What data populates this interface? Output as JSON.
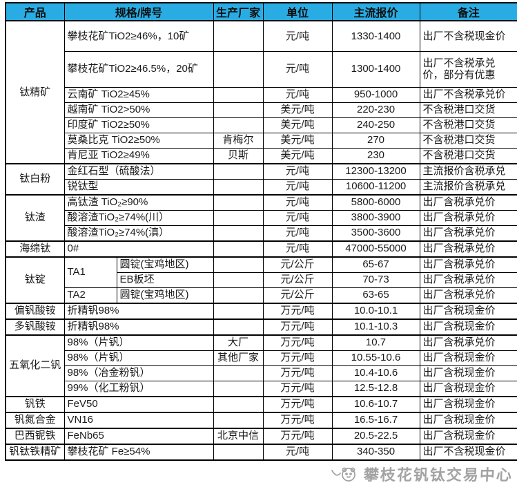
{
  "header": {
    "columns": [
      "产品",
      "规格/牌号",
      "生产厂家",
      "单位",
      "主流报价",
      "备注"
    ]
  },
  "rows": [
    {
      "product": "钛精矿",
      "product_rowspan": 7,
      "group": true,
      "height": 44,
      "spec": "攀枝花矿TiO2≥46%，10矿",
      "maker": "",
      "unit": "元/吨",
      "price": "1330-1400",
      "note": "出厂不含税现金价"
    },
    {
      "height": 52,
      "spec": "攀枝花矿TiO2≥46.5%，20矿",
      "maker": "",
      "unit": "元/吨",
      "price": "1300-1400",
      "note": "出厂不含税承兑价，部分有优惠"
    },
    {
      "spec": "云南矿 TiO2≥45%",
      "maker": "",
      "unit": "元/吨",
      "price": "950-1000",
      "note": "出厂不含税承兑价"
    },
    {
      "spec": "越南矿 TiO2>50%",
      "maker": "",
      "unit": "美元/吨",
      "price": "220-230",
      "note": "不含税港口交货"
    },
    {
      "spec": "印度矿 TiO2≥50%",
      "maker": "",
      "unit": "美元/吨",
      "price": "240-250",
      "note": "不含税港口交货"
    },
    {
      "spec": "莫桑比克 TiO2≥50%",
      "maker": "肯梅尔",
      "unit": "美元/吨",
      "price": "270",
      "note": "不含税港口交货"
    },
    {
      "spec": "肯尼亚 TiO2≥49%",
      "maker": "贝斯",
      "unit": "美元/吨",
      "price": "230",
      "note": "不含税港口交货"
    },
    {
      "product": "钛白粉",
      "product_rowspan": 2,
      "group": true,
      "spec": "金红石型（硫酸法）",
      "maker": "",
      "unit": "元/吨",
      "price": "12300-13200",
      "note": "主流报价含税承兑"
    },
    {
      "spec": "锐钛型",
      "maker": "",
      "unit": "元/吨",
      "price": "10600-11200",
      "note": "主流报价含税承兑"
    },
    {
      "product": "钛渣",
      "product_rowspan": 3,
      "group": true,
      "spec": "高钛渣 TiO₂≥90%",
      "maker": "",
      "unit": "元/吨",
      "price": "5800-6000",
      "note": "出厂含税承兑价"
    },
    {
      "spec": "酸溶渣TiO₂≥74%(川）",
      "maker": "",
      "unit": "元/吨",
      "price": "3800-3900",
      "note": "出厂含税承兑价"
    },
    {
      "spec": "酸溶渣TiO₂≥74%(滇）",
      "maker": "",
      "unit": "元/吨",
      "price": "3500-3600",
      "note": "出厂含税承兑价"
    },
    {
      "product": "海绵钛",
      "product_rowspan": 1,
      "group": true,
      "spec": "0#",
      "maker": "",
      "unit": "元/吨",
      "price": "47000-55000",
      "note": "出厂含税承兑价"
    },
    {
      "product": "钛锭",
      "product_rowspan": 3,
      "group": true,
      "split": true,
      "spec": "TA1",
      "spec_rowspan": 2,
      "spec2": "圆锭(宝鸡地区)",
      "maker": "",
      "unit": "元/公斤",
      "price": "65-67",
      "note": "出厂含税承兑价"
    },
    {
      "split": true,
      "spec2": "EB板坯",
      "maker": "",
      "unit": "元/公斤",
      "price": "70-73",
      "note": "出厂含税承兑价"
    },
    {
      "split": true,
      "spec": "TA2",
      "spec2": "圆锭(宝鸡地区)",
      "maker": "",
      "unit": "元/公斤",
      "price": "63-65",
      "note": "出厂含税承兑价"
    },
    {
      "product": "偏钒酸铵",
      "product_rowspan": 1,
      "group": true,
      "spec": "折精钒98%",
      "maker": "",
      "unit": "万元/吨",
      "price": "10.0-10.1",
      "note": "出厂含税现金价"
    },
    {
      "product": "多钒酸铵",
      "product_rowspan": 1,
      "group": true,
      "spec": "折精钒98%",
      "maker": "",
      "unit": "万元/吨",
      "price": "10.1-10.3",
      "note": "出厂含税现金价"
    },
    {
      "product": "五氧化二钒",
      "product_rowspan": 4,
      "group": true,
      "spec": "98%（片钒）",
      "maker": "大厂",
      "unit": "万元/吨",
      "price": "10.7",
      "note": "出厂含税承兑价"
    },
    {
      "spec": "98%（片钒）",
      "maker": "其他厂家",
      "unit": "万元/吨",
      "price": "10.55-10.6",
      "note": "出厂含税现金价"
    },
    {
      "spec": "98%（冶金粉钒）",
      "maker": "",
      "unit": "万元/吨",
      "price": "10.4-10.6",
      "note": "出厂含税现金价"
    },
    {
      "spec": "99%（化工粉钒）",
      "maker": "",
      "unit": "万元/吨",
      "price": "12.5-12.8",
      "note": "出厂含税现金价"
    },
    {
      "product": "钒铁",
      "product_rowspan": 1,
      "group": true,
      "spec": "FeV50",
      "maker": "",
      "unit": "万元/吨",
      "price": "10.6-10.7",
      "note": "出厂含税现金价"
    },
    {
      "product": "钒氮合金",
      "product_rowspan": 1,
      "group": true,
      "spec": "VN16",
      "maker": "",
      "unit": "万元/吨",
      "price": "16.5-16.7",
      "note": "出厂含税现金价"
    },
    {
      "product": "巴西铌铁",
      "product_rowspan": 1,
      "group": true,
      "spec": "FeNb65",
      "maker": "北京中信",
      "unit": "万元/吨",
      "price": "20.5-22.5",
      "note": "出厂含税现金价"
    },
    {
      "product": "钒钛铁精矿",
      "product_rowspan": 1,
      "group": true,
      "spec": "攀枝花矿 Fe≥54%",
      "maker": "",
      "unit": "元/吨",
      "price": "340-350",
      "note": "出厂不含税现金价"
    }
  ],
  "watermark": {
    "text": "攀枝花钒钛交易中心"
  },
  "colors": {
    "header_bg": "#29ace3",
    "header_text": "#0d0d0d",
    "border": "#000000",
    "watermark": "#a3a3a3"
  }
}
